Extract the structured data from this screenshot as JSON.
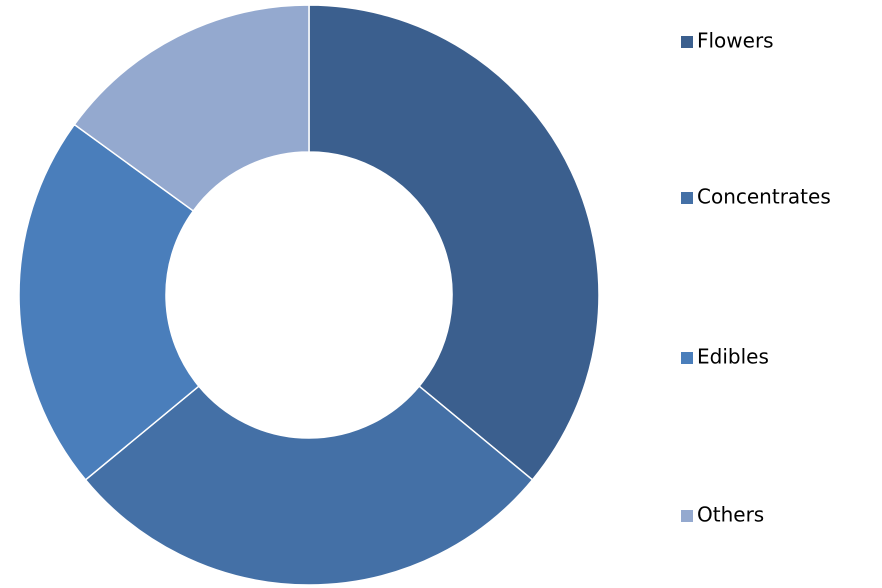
{
  "chart_data": {
    "type": "donut",
    "categories": [
      "Flowers",
      "Concentrates",
      "Edibles",
      "Others"
    ],
    "values": [
      36,
      28,
      21,
      15
    ],
    "colors": [
      "#3b5f8e",
      "#4470a6",
      "#4a7ebb",
      "#94a9cf"
    ],
    "legend": "right"
  }
}
